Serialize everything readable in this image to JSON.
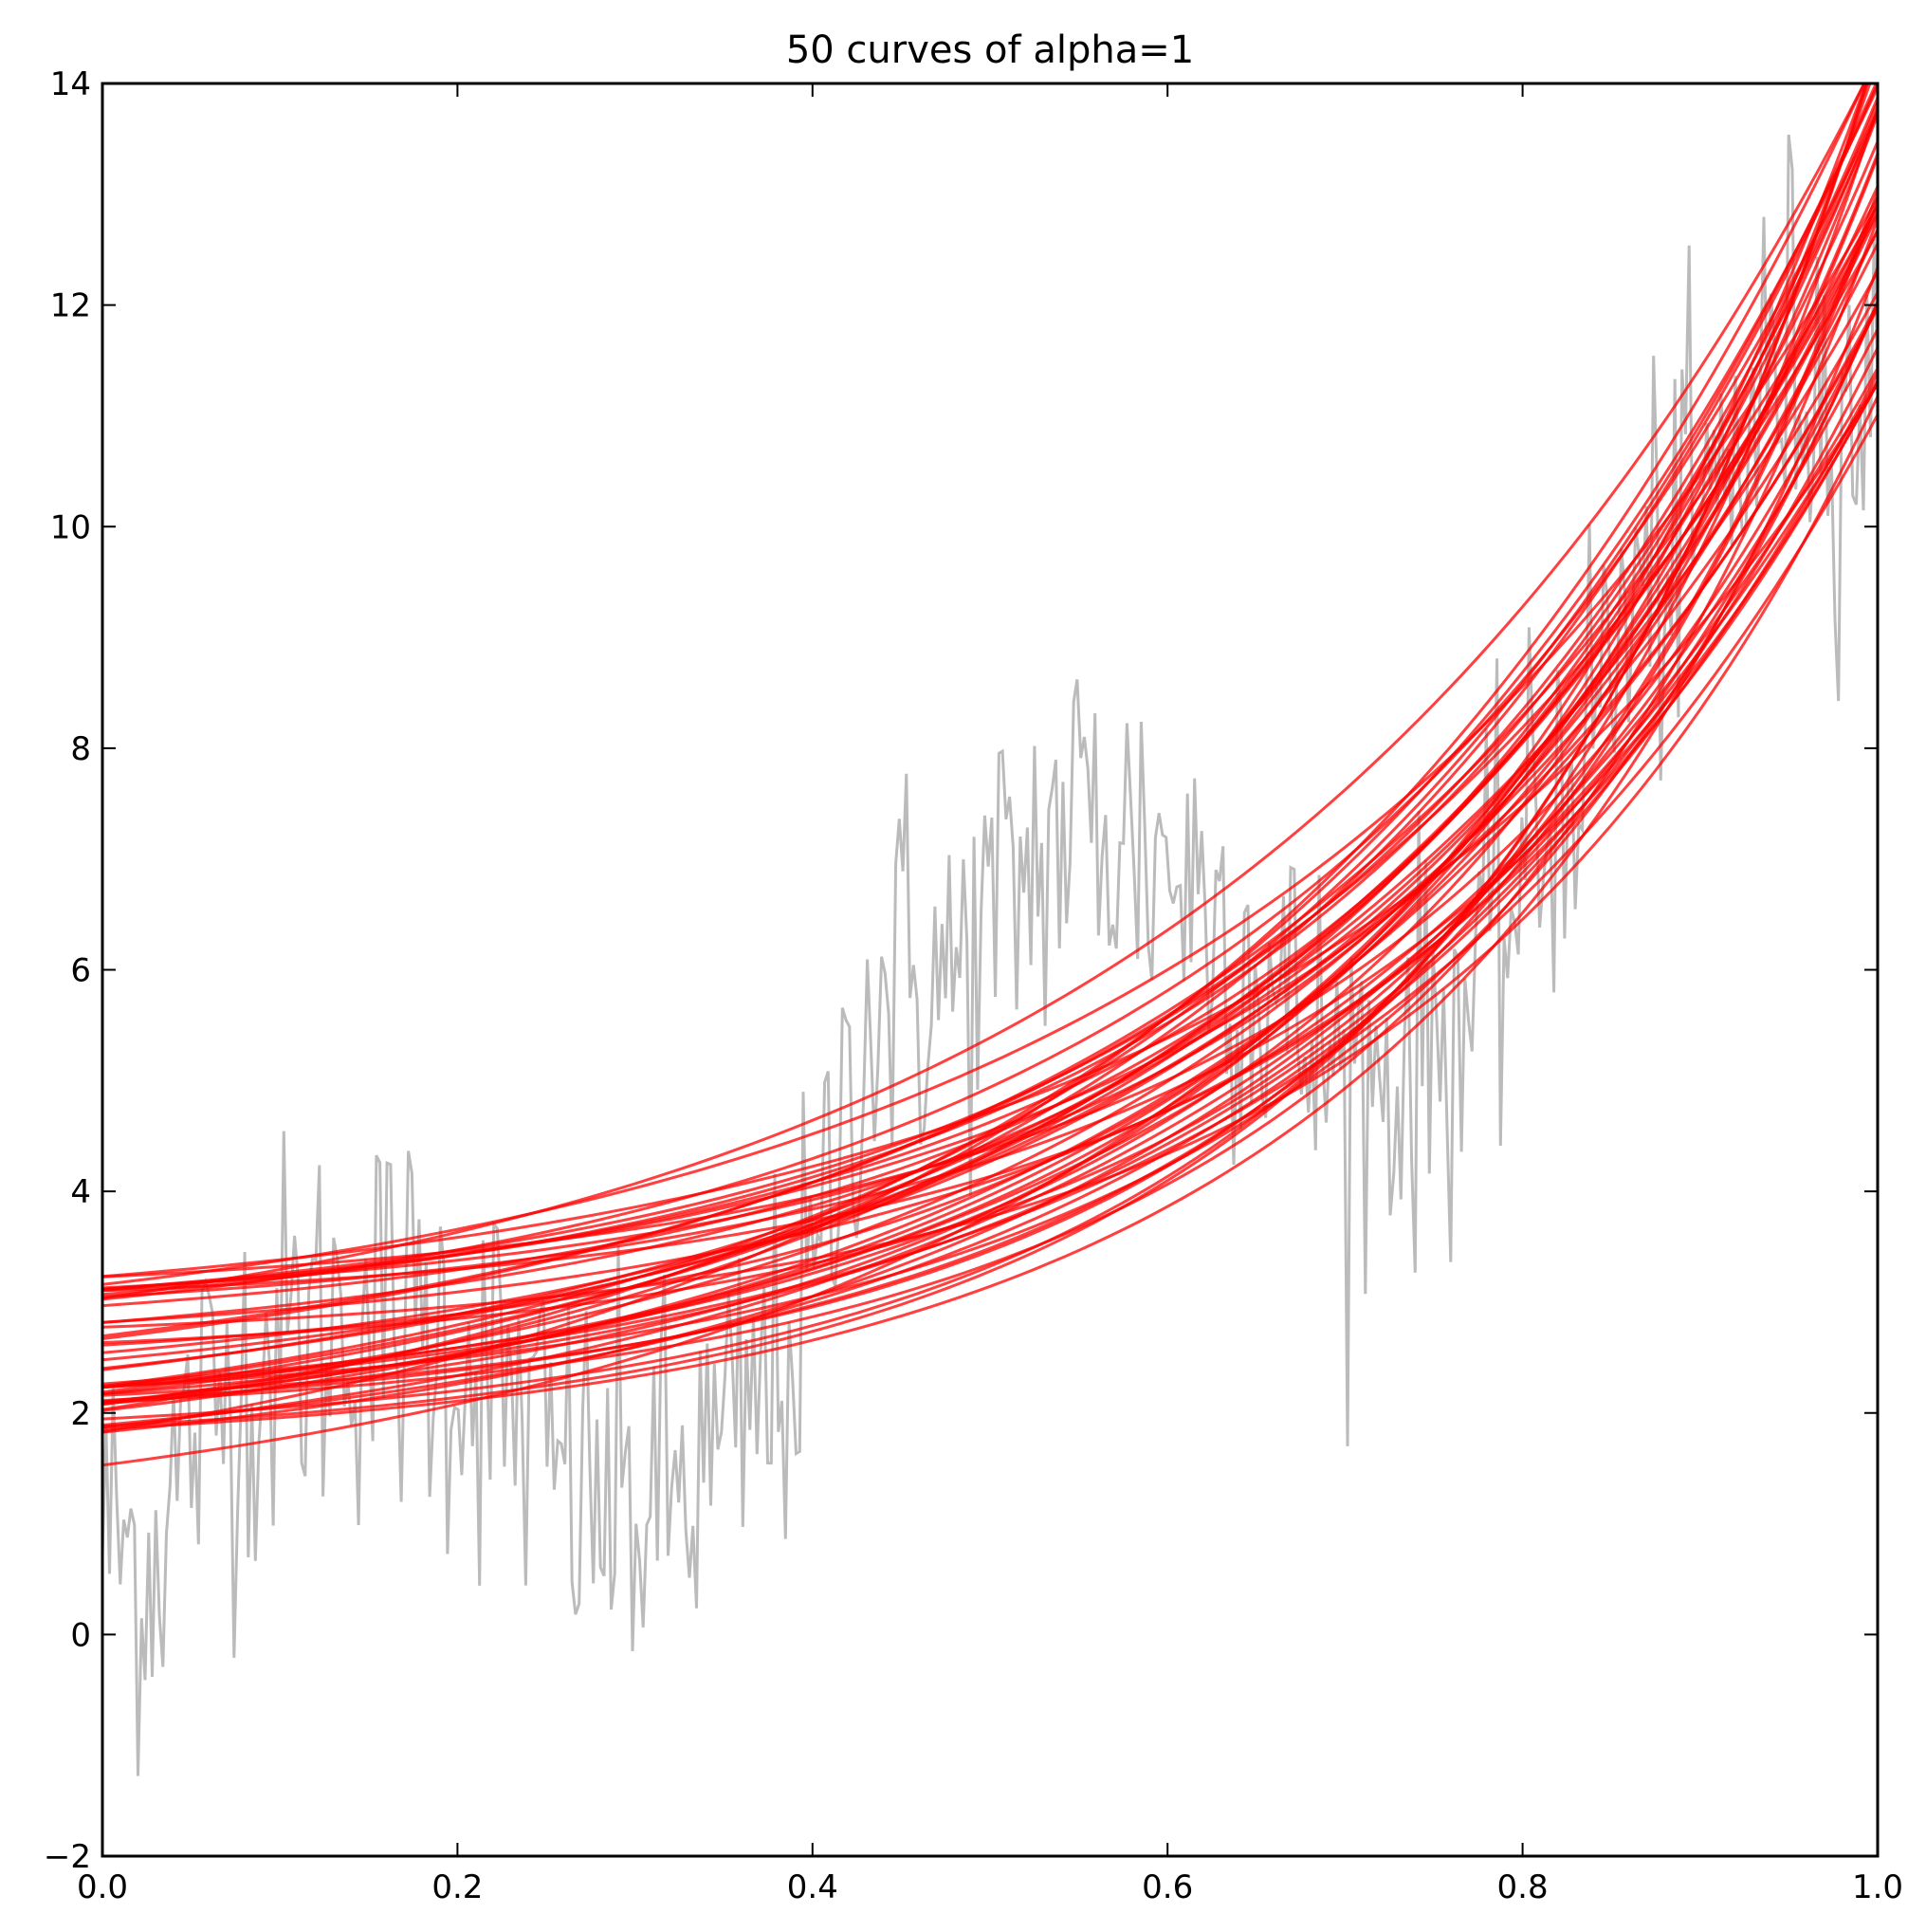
{
  "chart_data": {
    "type": "line",
    "title": "50 curves of alpha=1",
    "xlabel": "",
    "ylabel": "",
    "xlim": [
      0.0,
      1.0
    ],
    "ylim": [
      -2,
      14
    ],
    "x_ticks": [
      "0.0",
      "0.2",
      "0.4",
      "0.6",
      "0.8",
      "1.0"
    ],
    "y_ticks": [
      "−2",
      "0",
      "2",
      "4",
      "6",
      "8",
      "10",
      "12",
      "14"
    ],
    "grid": false,
    "legend": "none",
    "colors": {
      "noisy_data": "#bbbbbb",
      "curves": "#ff0000",
      "axes": "#000000"
    },
    "noisy_data": {
      "x": [
        0.0,
        0.025,
        0.05,
        0.075,
        0.1,
        0.125,
        0.15,
        0.175,
        0.2,
        0.225,
        0.25,
        0.275,
        0.3,
        0.325,
        0.35,
        0.375,
        0.4,
        0.425,
        0.45,
        0.475,
        0.5,
        0.525,
        0.55,
        0.575,
        0.6,
        0.625,
        0.65,
        0.675,
        0.7,
        0.725,
        0.75,
        0.775,
        0.8,
        0.825,
        0.85,
        0.875,
        0.9,
        0.925,
        0.95,
        0.975,
        1.0
      ],
      "y": [
        1.0,
        0.6,
        1.8,
        2.3,
        2.6,
        2.8,
        2.9,
        2.8,
        2.6,
        2.2,
        1.6,
        1.2,
        1.1,
        1.3,
        1.6,
        2.2,
        3.0,
        5.4,
        6.0,
        5.8,
        6.4,
        7.0,
        7.4,
        7.2,
        7.0,
        6.6,
        6.0,
        5.4,
        5.0,
        5.1,
        5.4,
        5.8,
        6.8,
        7.8,
        8.8,
        9.6,
        10.0,
        10.8,
        11.6,
        11.2,
        11.0
      ]
    },
    "curves_summary": {
      "count": 50,
      "y_at_x0_range": [
        1.4,
        3.3
      ],
      "y_at_x1_range": [
        11.0,
        14.5
      ]
    }
  }
}
